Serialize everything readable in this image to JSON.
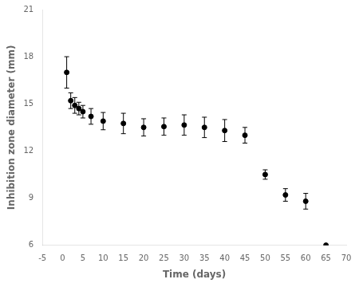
{
  "chart_data": {
    "type": "errorbar",
    "x": [
      1,
      2,
      3,
      4,
      5,
      7,
      10,
      15,
      20,
      25,
      30,
      35,
      40,
      45,
      50,
      55,
      60,
      65
    ],
    "values": [
      17.0,
      15.2,
      14.9,
      14.7,
      14.5,
      14.2,
      13.9,
      13.75,
      13.5,
      13.55,
      13.65,
      13.5,
      13.3,
      13.0,
      10.5,
      9.2,
      8.8,
      6.0
    ],
    "yerr": [
      1.0,
      0.5,
      0.5,
      0.4,
      0.4,
      0.5,
      0.55,
      0.65,
      0.55,
      0.55,
      0.65,
      0.65,
      0.7,
      0.5,
      0.3,
      0.4,
      0.5,
      0.0
    ],
    "xlim": [
      -5,
      70
    ],
    "ylim": [
      6,
      21
    ],
    "xticks": [
      -5,
      0,
      5,
      10,
      15,
      20,
      25,
      30,
      35,
      40,
      45,
      50,
      55,
      60,
      65,
      70
    ],
    "yticks": [
      6,
      9,
      12,
      15,
      18,
      21
    ],
    "xlabel": "Time (days)",
    "ylabel": "Inhibition zone diameter (mm)",
    "color": "#000000",
    "marker": "circle",
    "grid": false
  }
}
